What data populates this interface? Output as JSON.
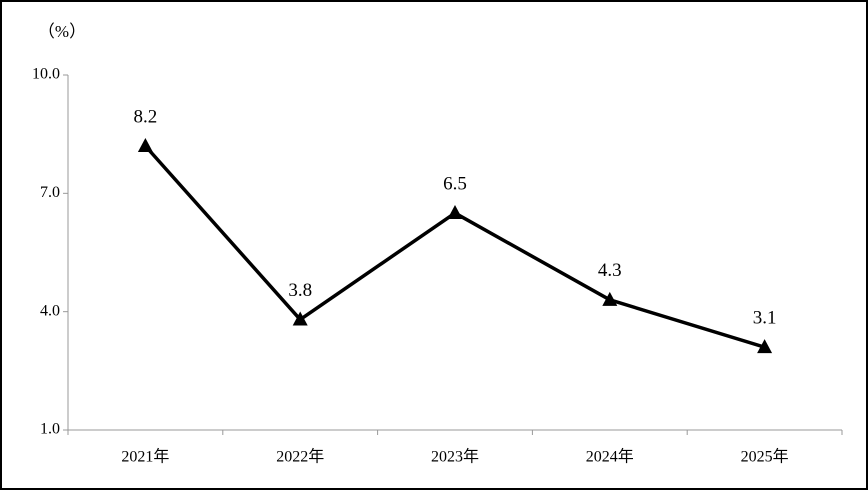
{
  "chart_data": {
    "type": "line",
    "y_label": "（%）",
    "categories": [
      "2021年",
      "2022年",
      "2023年",
      "2024年",
      "2025年"
    ],
    "values": [
      8.2,
      3.8,
      6.5,
      4.3,
      3.1
    ],
    "color": "#000000",
    "marker": "triangle",
    "ylim": [
      1,
      10
    ],
    "yticks": [
      {
        "value": 1,
        "label": "1.0"
      },
      {
        "value": 4,
        "label": "4.0"
      },
      {
        "value": 7,
        "label": "7.0"
      },
      {
        "value": 10,
        "label": "10.0"
      }
    ],
    "grid": false
  }
}
